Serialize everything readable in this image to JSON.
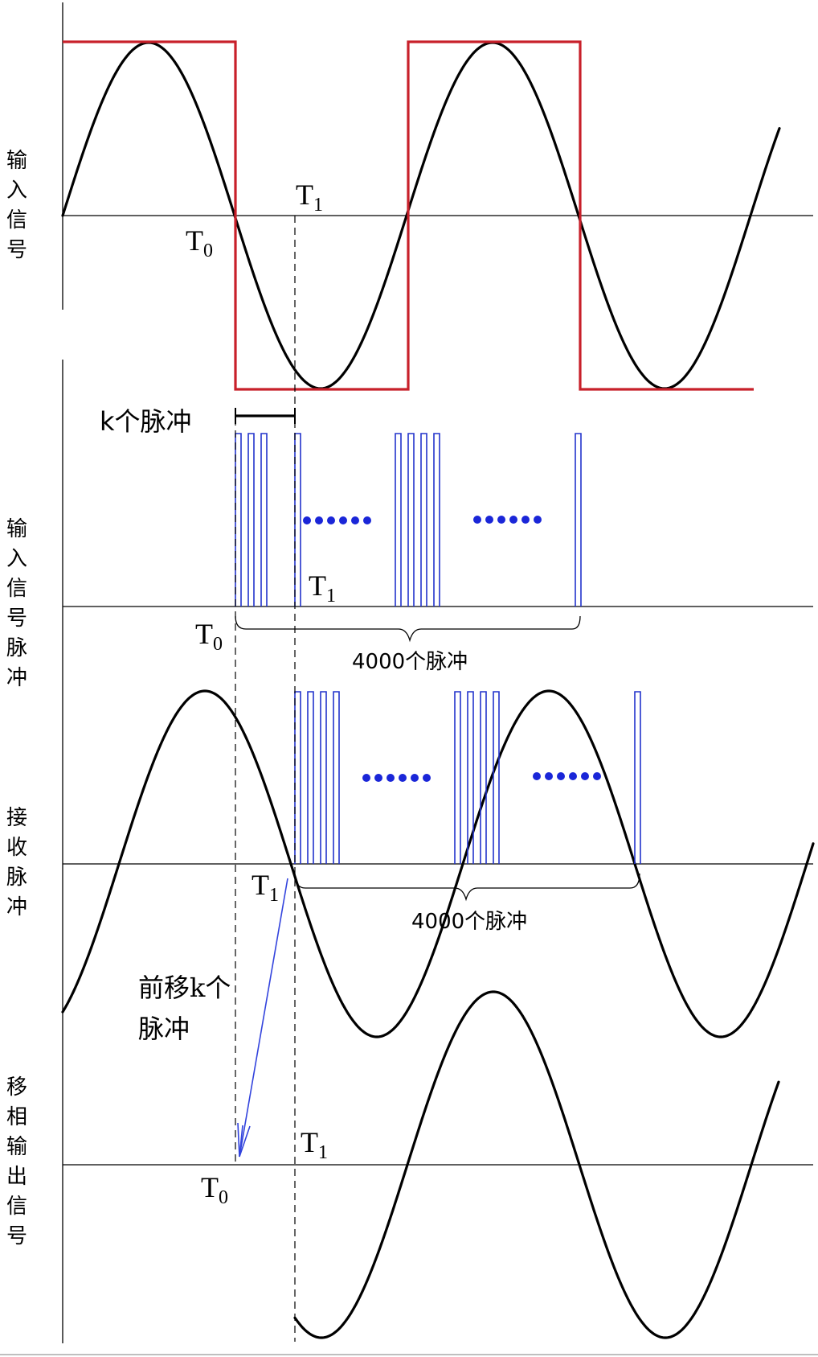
{
  "colors": {
    "sine": "#000000",
    "square_wave": "#c8202a",
    "pulse": "#2233cc",
    "dots": "#1a26d8",
    "arrow": "#3344dd"
  },
  "panel_labels": {
    "input_signal": [
      "输",
      "入",
      "信",
      "号"
    ],
    "input_signal_pulse": [
      "输",
      "入",
      "信",
      "号",
      "脉",
      "冲"
    ],
    "receive_pulse": [
      "接",
      "收",
      "脉",
      "冲"
    ],
    "shifted_output": [
      "移",
      "相",
      "输",
      "出",
      "信",
      "号"
    ]
  },
  "time_markers": {
    "t0_main": "T",
    "t0_sub": "0",
    "t1_main": "T",
    "t1_sub": "1"
  },
  "annotations": {
    "k_pulses": "k个脉冲",
    "pulses_4000": "4000个脉冲",
    "shift_line1": "前移k个",
    "shift_line2": "脉冲"
  }
}
